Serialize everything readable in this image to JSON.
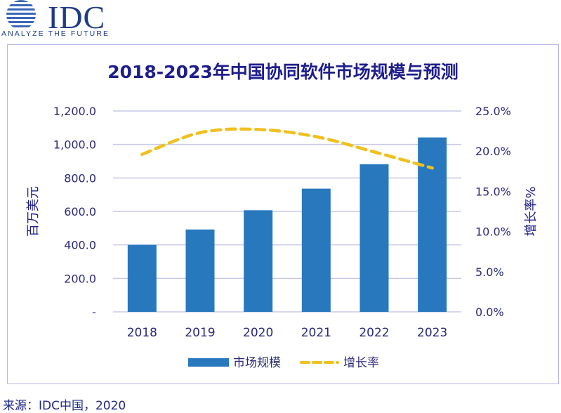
{
  "logo": {
    "text": "IDC",
    "tagline": "ANALYZE THE FUTURE"
  },
  "source": "来源：IDC中国，2020",
  "colors": {
    "title": "#1e1e8c",
    "bar": "#2878be",
    "line": "#f0c020",
    "axis_text": "#2a2a7a",
    "grid": "#c8c8e8"
  },
  "chart_data": {
    "type": "bar",
    "title": "2018-2023年中国协同软件市场规模与预测",
    "categories": [
      "2018",
      "2019",
      "2020",
      "2021",
      "2022",
      "2023"
    ],
    "series": [
      {
        "name": "市场规模",
        "type": "bar",
        "axis": "left",
        "values": [
          400,
          492,
          607,
          736,
          882,
          1042
        ]
      },
      {
        "name": "增长率",
        "type": "line",
        "style": "dashed",
        "axis": "right",
        "values": [
          19.6,
          22.3,
          22.7,
          21.8,
          19.9,
          17.9
        ]
      }
    ],
    "ylabel": "百万美元",
    "y2label": "增长率%",
    "ylim": [
      0,
      1200
    ],
    "y2lim": [
      0,
      25
    ],
    "yticks": [
      "-",
      "200.0",
      "400.0",
      "600.0",
      "800.0",
      "1,000.0",
      "1,200.0"
    ],
    "y2ticks": [
      "0.0%",
      "5.0%",
      "10.0%",
      "15.0%",
      "20.0%",
      "25.0%"
    ],
    "grid": true,
    "legend_position": "bottom"
  }
}
